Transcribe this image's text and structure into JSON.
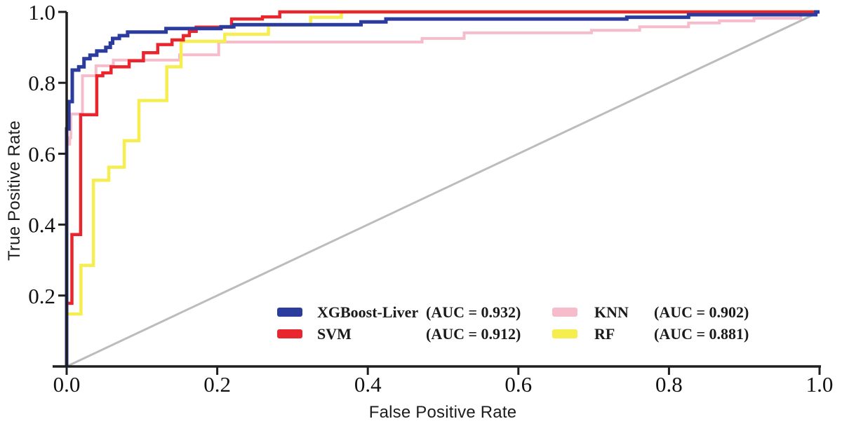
{
  "chart_data": {
    "type": "line",
    "subtype": "roc-step-curves",
    "title": "",
    "xlabel": "False Positive Rate",
    "ylabel": "True Positive Rate",
    "xlim": [
      0.0,
      1.0
    ],
    "ylim": [
      0.0,
      1.0
    ],
    "grid": false,
    "legend_position": "inside lower-center, two columns",
    "x_ticks": [
      {
        "value": 0.0,
        "label": "0.0"
      },
      {
        "value": 0.2,
        "label": "0.2"
      },
      {
        "value": 0.4,
        "label": "0.4"
      },
      {
        "value": 0.6,
        "label": "0.6"
      },
      {
        "value": 0.8,
        "label": "0.8"
      },
      {
        "value": 1.0,
        "label": "1.0"
      }
    ],
    "y_ticks": [
      {
        "value": 0.2,
        "label": "0.2"
      },
      {
        "value": 0.4,
        "label": "0.4"
      },
      {
        "value": 0.6,
        "label": "0.6"
      },
      {
        "value": 0.8,
        "label": "0.8"
      },
      {
        "value": 1.0,
        "label": "1.0"
      }
    ],
    "series": [
      {
        "name": "XGBoost-Liver",
        "auc": 0.932,
        "auc_label": "(AUC = 0.932)",
        "color": "#2c3c9e",
        "line_width": 5,
        "points": [
          [
            0,
            0
          ],
          [
            0,
            0.67
          ],
          [
            0.003,
            0.67
          ],
          [
            0.003,
            0.747
          ],
          [
            0.0075,
            0.747
          ],
          [
            0.0075,
            0.836
          ],
          [
            0.016,
            0.836
          ],
          [
            0.016,
            0.845
          ],
          [
            0.023,
            0.845
          ],
          [
            0.023,
            0.868
          ],
          [
            0.031,
            0.868
          ],
          [
            0.031,
            0.878
          ],
          [
            0.04,
            0.878
          ],
          [
            0.04,
            0.89
          ],
          [
            0.052,
            0.89
          ],
          [
            0.052,
            0.9
          ],
          [
            0.058,
            0.9
          ],
          [
            0.058,
            0.912
          ],
          [
            0.061,
            0.912
          ],
          [
            0.061,
            0.925
          ],
          [
            0.07,
            0.925
          ],
          [
            0.07,
            0.933
          ],
          [
            0.081,
            0.933
          ],
          [
            0.081,
            0.943
          ],
          [
            0.132,
            0.943
          ],
          [
            0.132,
            0.953
          ],
          [
            0.205,
            0.953
          ],
          [
            0.205,
            0.958
          ],
          [
            0.222,
            0.958
          ],
          [
            0.222,
            0.964
          ],
          [
            0.391,
            0.964
          ],
          [
            0.391,
            0.972
          ],
          [
            0.424,
            0.972
          ],
          [
            0.424,
            0.98
          ],
          [
            0.744,
            0.98
          ],
          [
            0.744,
            0.985
          ],
          [
            0.826,
            0.985
          ],
          [
            0.826,
            0.992
          ],
          [
            0.995,
            0.992
          ],
          [
            0.995,
            1
          ],
          [
            1,
            1
          ]
        ]
      },
      {
        "name": "SVM",
        "auc": 0.912,
        "auc_label": "(AUC = 0.912)",
        "color": "#e9252d",
        "line_width": 4.5,
        "points": [
          [
            0,
            0
          ],
          [
            0,
            0.178
          ],
          [
            0.007,
            0.178
          ],
          [
            0.007,
            0.372
          ],
          [
            0.0185,
            0.372
          ],
          [
            0.0185,
            0.71
          ],
          [
            0.04,
            0.71
          ],
          [
            0.04,
            0.82
          ],
          [
            0.048,
            0.82
          ],
          [
            0.048,
            0.828
          ],
          [
            0.059,
            0.828
          ],
          [
            0.059,
            0.845
          ],
          [
            0.083,
            0.845
          ],
          [
            0.083,
            0.862
          ],
          [
            0.102,
            0.862
          ],
          [
            0.102,
            0.885
          ],
          [
            0.121,
            0.885
          ],
          [
            0.121,
            0.908
          ],
          [
            0.14,
            0.908
          ],
          [
            0.14,
            0.921
          ],
          [
            0.155,
            0.921
          ],
          [
            0.155,
            0.933
          ],
          [
            0.163,
            0.933
          ],
          [
            0.163,
            0.945
          ],
          [
            0.172,
            0.945
          ],
          [
            0.172,
            0.957
          ],
          [
            0.219,
            0.957
          ],
          [
            0.219,
            0.98
          ],
          [
            0.26,
            0.98
          ],
          [
            0.26,
            0.986
          ],
          [
            0.283,
            0.986
          ],
          [
            0.283,
            1
          ],
          [
            1,
            1
          ]
        ]
      },
      {
        "name": "KNN",
        "auc": 0.902,
        "auc_label": "(AUC = 0.902)",
        "color": "#f6bccb",
        "line_width": 4,
        "points": [
          [
            0,
            0
          ],
          [
            0,
            0.627
          ],
          [
            0.004,
            0.627
          ],
          [
            0.004,
            0.645
          ],
          [
            0.0055,
            0.645
          ],
          [
            0.0055,
            0.712
          ],
          [
            0.021,
            0.712
          ],
          [
            0.021,
            0.82
          ],
          [
            0.039,
            0.82
          ],
          [
            0.039,
            0.848
          ],
          [
            0.062,
            0.848
          ],
          [
            0.062,
            0.864
          ],
          [
            0.15,
            0.864
          ],
          [
            0.15,
            0.879
          ],
          [
            0.202,
            0.879
          ],
          [
            0.202,
            0.915
          ],
          [
            0.472,
            0.915
          ],
          [
            0.472,
            0.925
          ],
          [
            0.528,
            0.925
          ],
          [
            0.528,
            0.941
          ],
          [
            0.697,
            0.941
          ],
          [
            0.697,
            0.948
          ],
          [
            0.761,
            0.948
          ],
          [
            0.761,
            0.958
          ],
          [
            0.826,
            0.958
          ],
          [
            0.826,
            0.969
          ],
          [
            0.867,
            0.969
          ],
          [
            0.867,
            0.975
          ],
          [
            0.913,
            0.975
          ],
          [
            0.913,
            0.982
          ],
          [
            0.975,
            0.982
          ],
          [
            0.975,
            1
          ],
          [
            1,
            1
          ]
        ]
      },
      {
        "name": "RF",
        "auc": 0.881,
        "auc_label": "(AUC = 0.881)",
        "color": "#f5ee4e",
        "line_width": 4.5,
        "points": [
          [
            0,
            0
          ],
          [
            0,
            0.148
          ],
          [
            0.019,
            0.148
          ],
          [
            0.019,
            0.285
          ],
          [
            0.0355,
            0.285
          ],
          [
            0.0355,
            0.525
          ],
          [
            0.056,
            0.525
          ],
          [
            0.056,
            0.562
          ],
          [
            0.0765,
            0.562
          ],
          [
            0.0765,
            0.637
          ],
          [
            0.096,
            0.637
          ],
          [
            0.096,
            0.75
          ],
          [
            0.133,
            0.75
          ],
          [
            0.133,
            0.845
          ],
          [
            0.152,
            0.845
          ],
          [
            0.152,
            0.917
          ],
          [
            0.21,
            0.917
          ],
          [
            0.21,
            0.937
          ],
          [
            0.268,
            0.937
          ],
          [
            0.268,
            0.963
          ],
          [
            0.324,
            0.963
          ],
          [
            0.324,
            0.985
          ],
          [
            0.365,
            0.985
          ],
          [
            0.365,
            1
          ],
          [
            1,
            1
          ]
        ]
      }
    ],
    "reference_line": {
      "name": "chance diagonal",
      "color": "#bcbcbc",
      "line_width": 3,
      "points": [
        [
          0,
          0
        ],
        [
          1,
          1
        ]
      ]
    },
    "axis_color": "#1f1f1f"
  },
  "legend": {
    "rows": [
      [
        "XGBoost-Liver",
        "KNN"
      ],
      [
        "SVM",
        "RF"
      ]
    ]
  }
}
